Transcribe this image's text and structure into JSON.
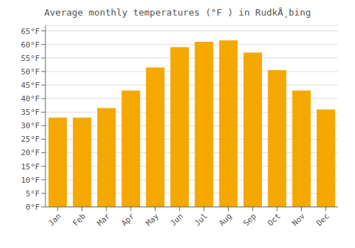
{
  "chart_data": {
    "type": "bar",
    "title": "Average monthly temperatures (°F ) in RudkÅ¸bing",
    "categories": [
      "Jan",
      "Feb",
      "Mar",
      "Apr",
      "May",
      "Jun",
      "Jul",
      "Aug",
      "Sep",
      "Oct",
      "Nov",
      "Dec"
    ],
    "values": [
      33,
      33,
      36.5,
      43,
      51.5,
      59,
      61,
      61.5,
      57,
      50.5,
      43,
      36
    ],
    "color": "#F5A800",
    "ylim": [
      0,
      67
    ],
    "yticks": [
      {
        "value": 0,
        "label": "0°F"
      },
      {
        "value": 5,
        "label": "5°F"
      },
      {
        "value": 10,
        "label": "10°F"
      },
      {
        "value": 15,
        "label": "15°F"
      },
      {
        "value": 20,
        "label": "20°F"
      },
      {
        "value": 25,
        "label": "25°F"
      },
      {
        "value": 30,
        "label": "30°F"
      },
      {
        "value": 35,
        "label": "35°F"
      },
      {
        "value": 40,
        "label": "40°F"
      },
      {
        "value": 45,
        "label": "45°F"
      },
      {
        "value": 50,
        "label": "50°F"
      },
      {
        "value": 55,
        "label": "55°F"
      },
      {
        "value": 60,
        "label": "60°F"
      },
      {
        "value": 65,
        "label": "65°F"
      }
    ],
    "grid": true
  }
}
